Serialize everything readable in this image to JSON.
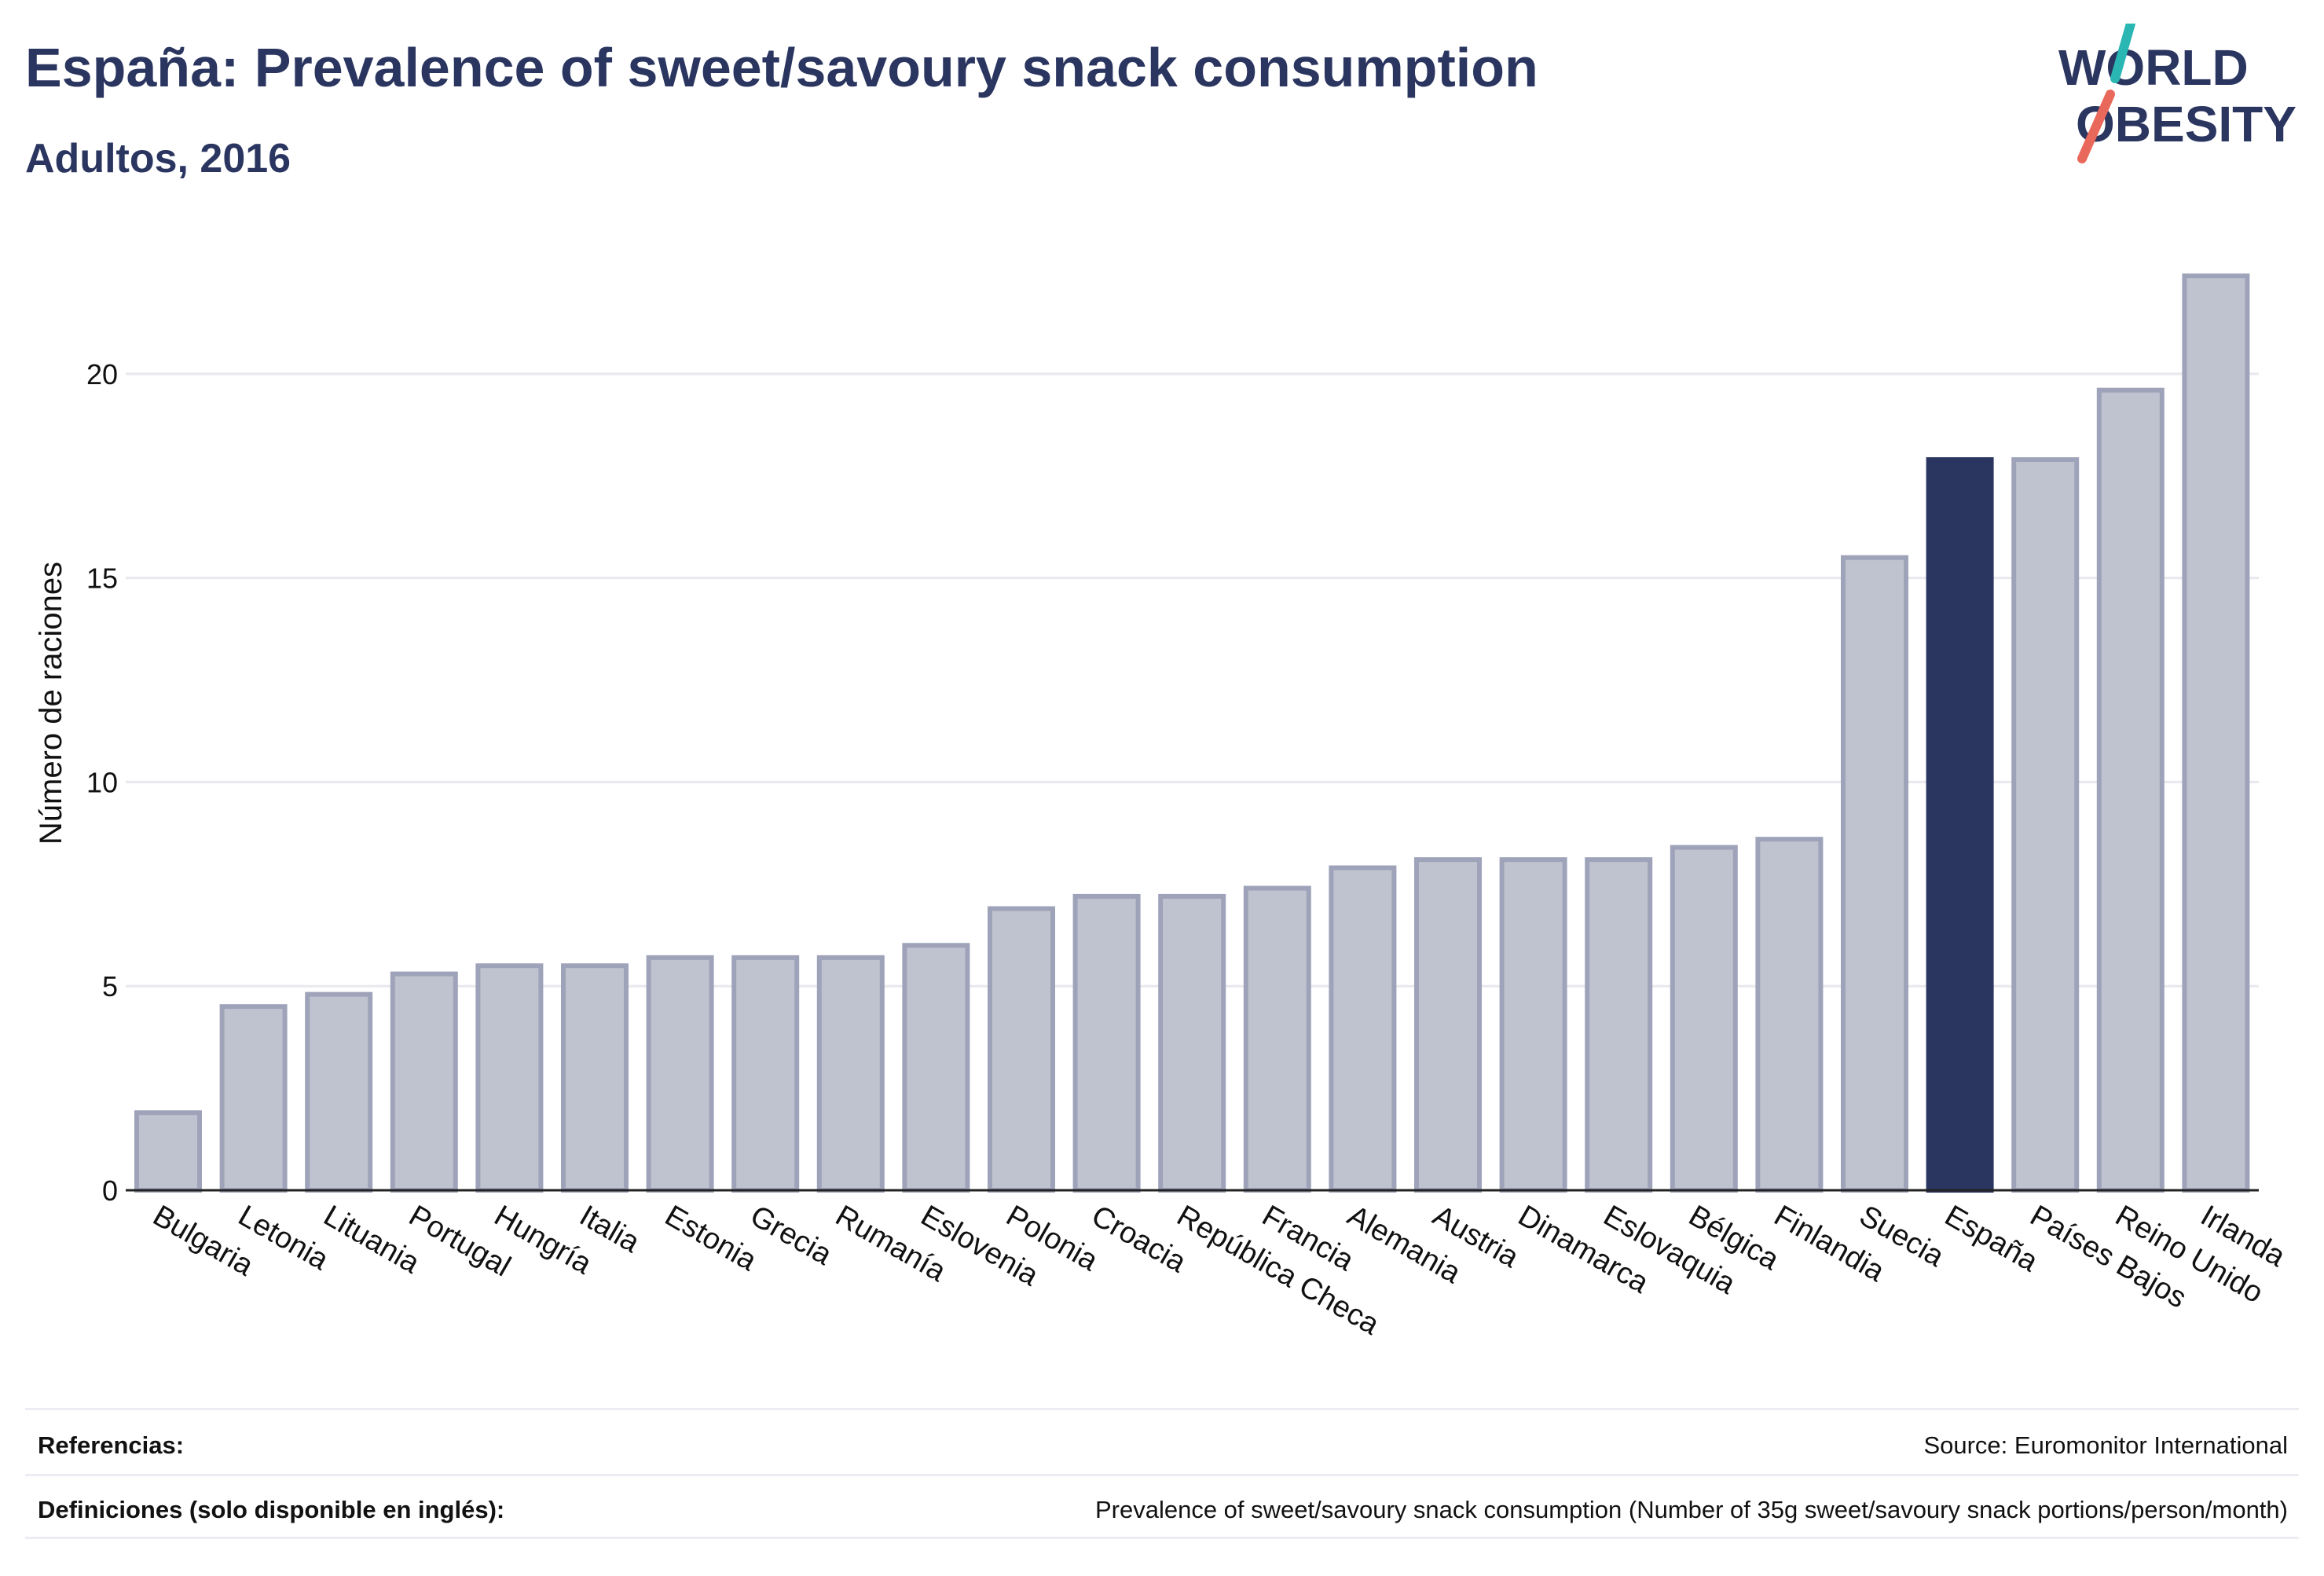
{
  "header": {
    "title": "España: Prevalence of sweet/savoury snack consumption",
    "subtitle": "Adultos, 2016"
  },
  "logo": {
    "line1": "WORLD",
    "line2": "OBESITY",
    "accent_teal": "#2ab7b3",
    "accent_red": "#e9685c"
  },
  "colors": {
    "bar_fill": "#bfc3d0",
    "bar_stroke": "#9ea3ba",
    "highlight": "#2a3560",
    "grid": "#e8e8ee",
    "axis": "#222222"
  },
  "chart_data": {
    "type": "bar",
    "title": "España: Prevalence of sweet/savoury snack consumption",
    "subtitle": "Adultos, 2016",
    "xlabel": "",
    "ylabel": "Número de raciones",
    "ylim": [
      0,
      23
    ],
    "yticks": [
      0,
      5,
      10,
      15,
      20
    ],
    "grid": true,
    "highlight": "España",
    "categories": [
      "Bulgaria",
      "Letonia",
      "Lituania",
      "Portugal",
      "Hungría",
      "Italia",
      "Estonia",
      "Grecia",
      "Rumanía",
      "Eslovenia",
      "Polonia",
      "Croacia",
      "República Checa",
      "Francia",
      "Alemania",
      "Austria",
      "Dinamarca",
      "Eslovaquia",
      "Bélgica",
      "Finlandia",
      "Suecia",
      "España",
      "Países Bajos",
      "Reino Unido",
      "Irlanda"
    ],
    "values": [
      1.9,
      4.5,
      4.8,
      5.3,
      5.5,
      5.5,
      5.7,
      5.7,
      5.7,
      6.0,
      6.9,
      7.2,
      7.2,
      7.4,
      7.9,
      8.1,
      8.1,
      8.1,
      8.4,
      8.6,
      15.5,
      17.9,
      17.9,
      19.6,
      22.4
    ]
  },
  "footer": {
    "references_label": "Referencias:",
    "references_value": "Source: Euromonitor International",
    "definitions_label": "Definiciones (solo disponible en inglés):",
    "definitions_value": "Prevalence of sweet/savoury snack consumption (Number of 35g sweet/savoury snack portions/person/month)"
  }
}
